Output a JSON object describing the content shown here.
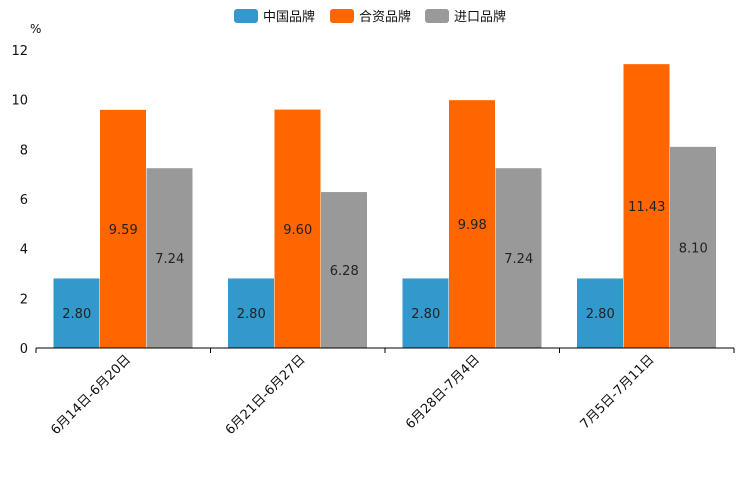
{
  "chart_data": {
    "type": "bar",
    "unit": "%",
    "categories": [
      "6月14日-6月20日",
      "6月21日-6月27日",
      "6月28日-7月4日",
      "7月5日-7月11日"
    ],
    "series": [
      {
        "name": "中国品牌",
        "color": "#3399cc",
        "values": [
          2.8,
          2.8,
          2.8,
          2.8
        ],
        "labels": [
          "2.80",
          "2.80",
          "2.80",
          "2.80"
        ]
      },
      {
        "name": "合资品牌",
        "color": "#ff6600",
        "values": [
          9.59,
          9.6,
          9.98,
          11.43
        ],
        "labels": [
          "9.59",
          "9.60",
          "9.98",
          "11.43"
        ]
      },
      {
        "name": "进口品牌",
        "color": "#999999",
        "values": [
          7.24,
          6.28,
          7.24,
          8.1
        ],
        "labels": [
          "7.24",
          "6.28",
          "7.24",
          "8.10"
        ]
      }
    ],
    "ylim": [
      0,
      12
    ],
    "yticks": [
      "0",
      "2",
      "4",
      "6",
      "8",
      "10",
      "12"
    ],
    "legend_position": "top-center"
  }
}
